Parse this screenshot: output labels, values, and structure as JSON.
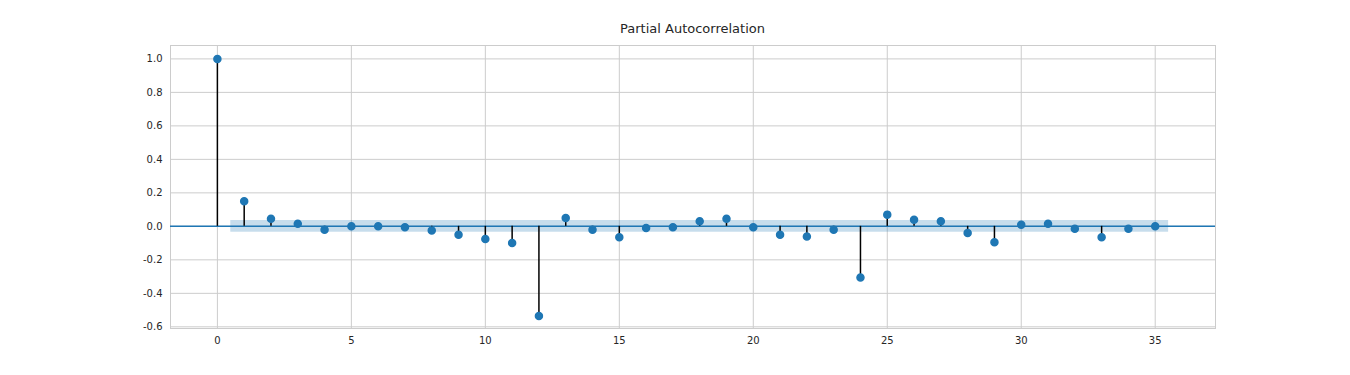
{
  "chart_data": {
    "type": "stem",
    "title": "Partial Autocorrelation",
    "x": [
      0,
      1,
      2,
      3,
      4,
      5,
      6,
      7,
      8,
      9,
      10,
      11,
      12,
      13,
      14,
      15,
      16,
      17,
      18,
      19,
      20,
      21,
      22,
      23,
      24,
      25,
      26,
      27,
      28,
      29,
      30,
      31,
      32,
      33,
      34,
      35
    ],
    "values": [
      1.0,
      0.15,
      0.045,
      0.015,
      -0.02,
      0.0,
      0.0,
      -0.005,
      -0.025,
      -0.05,
      -0.075,
      -0.1,
      -0.535,
      0.05,
      -0.02,
      -0.065,
      -0.01,
      -0.005,
      0.03,
      0.045,
      -0.005,
      -0.05,
      -0.06,
      -0.02,
      -0.305,
      0.07,
      0.04,
      0.03,
      -0.04,
      -0.095,
      0.01,
      0.015,
      -0.015,
      -0.065,
      -0.015,
      0.0
    ],
    "color": "#1f77b4",
    "confint": [
      -0.035,
      0.035
    ],
    "xlim": [
      -1.75,
      37.25
    ],
    "xticks": [
      0,
      5,
      10,
      15,
      20,
      25,
      30,
      35
    ],
    "ylim": [
      -0.61,
      1.08
    ],
    "yticks": [
      -0.6,
      -0.4,
      -0.2,
      {
        "value": 0,
        "label": "0.0"
      },
      0.2,
      0.4,
      0.6,
      0.8,
      {
        "value": 1,
        "label": "1.0"
      }
    ],
    "grid": true
  }
}
